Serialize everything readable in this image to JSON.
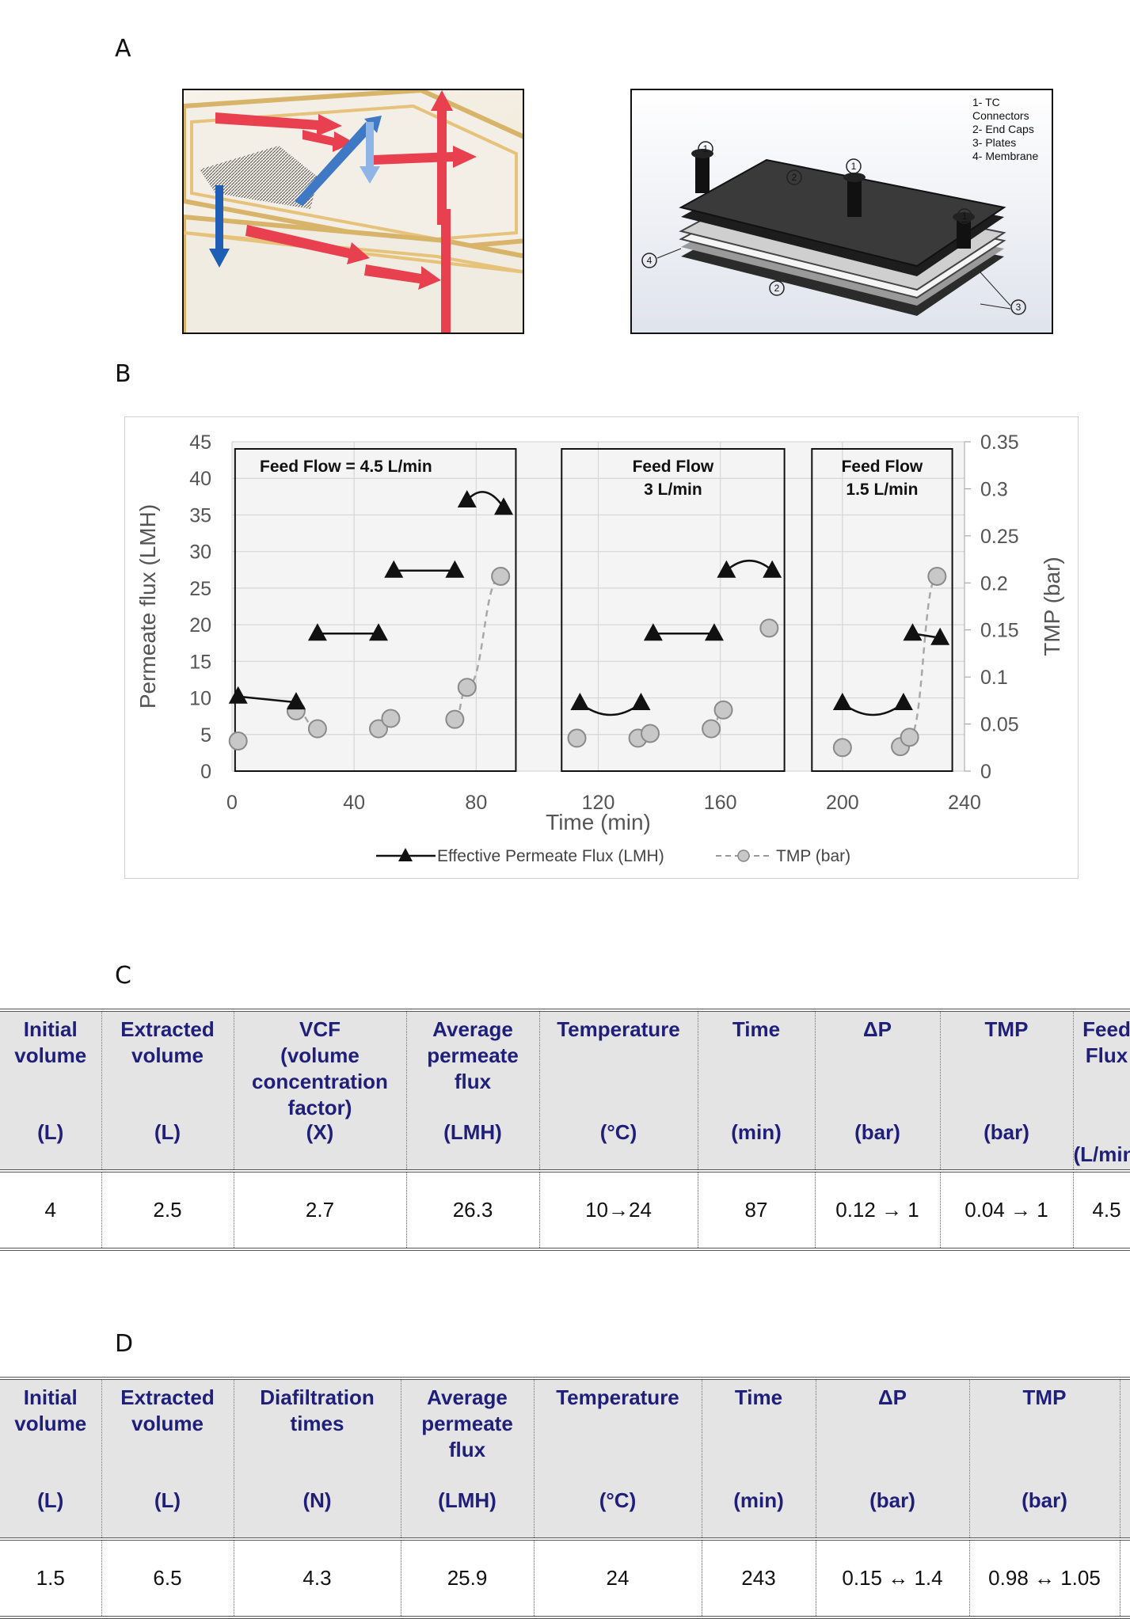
{
  "panels": {
    "a": "A",
    "b": "B",
    "c": "C",
    "d": "D"
  },
  "figure_a": {
    "legend": [
      "1- TC",
      "Connectors",
      "2- End Caps",
      "3- Plates",
      "4- Membrane"
    ],
    "callouts": [
      "1",
      "1",
      "1",
      "2",
      "2",
      "3",
      "4"
    ]
  },
  "chart_data": {
    "type": "scatter",
    "title": "",
    "xlabel": "Time (min)",
    "ylabel": "Permeate flux (LMH)",
    "y2label": "TMP (bar)",
    "xlim": [
      0,
      240
    ],
    "ylim": [
      0,
      45
    ],
    "y2lim": [
      0,
      0.35
    ],
    "x_ticks": [
      "0",
      "40",
      "80",
      "120",
      "160",
      "200",
      "240"
    ],
    "y_ticks": [
      "0",
      "5",
      "10",
      "15",
      "20",
      "25",
      "30",
      "35",
      "40",
      "45"
    ],
    "y2_ticks": [
      "0",
      "0.05",
      "0.1",
      "0.15",
      "0.2",
      "0.25",
      "0.3",
      "0.35"
    ],
    "grid": true,
    "legend_position": "bottom",
    "regions": [
      {
        "label_lines": [
          "Feed Flow = 4.5 L/min"
        ],
        "x_range": [
          1,
          93
        ]
      },
      {
        "label_lines": [
          "Feed Flow",
          "3 L/min"
        ],
        "x_range": [
          108,
          181
        ]
      },
      {
        "label_lines": [
          "Feed Flow",
          "1.5 L/min"
        ],
        "x_range": [
          190,
          236
        ]
      }
    ],
    "series": [
      {
        "name": "Effective Permeate Flux (LMH)",
        "axis": "left",
        "marker": "triangle",
        "points": [
          [
            2,
            10.2
          ],
          [
            21,
            9.4
          ],
          [
            28,
            18.8
          ],
          [
            48,
            18.8
          ],
          [
            53,
            27.4
          ],
          [
            73,
            27.4
          ],
          [
            77,
            37
          ],
          [
            89,
            36
          ],
          [
            114,
            9.3
          ],
          [
            134,
            9.3
          ],
          [
            138,
            18.8
          ],
          [
            158,
            18.8
          ],
          [
            162,
            27.4
          ],
          [
            177,
            27.4
          ],
          [
            200,
            9.3
          ],
          [
            220,
            9.3
          ],
          [
            223,
            18.8
          ],
          [
            232,
            18.2
          ]
        ]
      },
      {
        "name": "TMP (bar)",
        "axis": "right",
        "marker": "circle",
        "points": [
          [
            2,
            0.032
          ],
          [
            21,
            0.064
          ],
          [
            28,
            0.045
          ],
          [
            48,
            0.045
          ],
          [
            52,
            0.056
          ],
          [
            73,
            0.055
          ],
          [
            77,
            0.089
          ],
          [
            88,
            0.207
          ],
          [
            113,
            0.035
          ],
          [
            133,
            0.035
          ],
          [
            137,
            0.04
          ],
          [
            157,
            0.045
          ],
          [
            161,
            0.065
          ],
          [
            176,
            0.152
          ],
          [
            200,
            0.025
          ],
          [
            219,
            0.026
          ],
          [
            222,
            0.036
          ],
          [
            231,
            0.207
          ]
        ]
      }
    ],
    "legend_entries": [
      "Effective Permeate Flux (LMH)",
      "TMP (bar)"
    ]
  },
  "table_c": {
    "headers": [
      {
        "label_lines": [
          "Initial",
          "volume"
        ],
        "unit": "(L)"
      },
      {
        "label_lines": [
          "Extracted",
          "volume"
        ],
        "unit": "(L)"
      },
      {
        "label_lines": [
          "VCF",
          "(volume",
          "concentration",
          "factor)"
        ],
        "unit": "(X)"
      },
      {
        "label_lines": [
          "Average",
          "permeate",
          "flux"
        ],
        "unit": "(LMH)"
      },
      {
        "label_lines": [
          "Temperature"
        ],
        "unit": "(°C)"
      },
      {
        "label_lines": [
          "Time"
        ],
        "unit": "(min)"
      },
      {
        "label_lines": [
          "ΔP"
        ],
        "unit": "(bar)"
      },
      {
        "label_lines": [
          "TMP"
        ],
        "unit": "(bar)"
      },
      {
        "label_lines": [
          "Feed",
          "Flux"
        ],
        "unit": "(L/min)"
      }
    ],
    "rows": [
      [
        "4",
        "2.5",
        "2.7",
        "26.3",
        "10→24",
        "87",
        "0.12 → 1",
        "0.04 → 1",
        "4.5"
      ]
    ]
  },
  "table_d": {
    "headers": [
      {
        "label_lines": [
          "Initial",
          "volume"
        ],
        "unit": "(L)"
      },
      {
        "label_lines": [
          "Extracted",
          "volume"
        ],
        "unit": "(L)"
      },
      {
        "label_lines": [
          "Diafiltration",
          "times"
        ],
        "unit": "(N)"
      },
      {
        "label_lines": [
          "Average",
          "permeate",
          "flux"
        ],
        "unit": "(LMH)"
      },
      {
        "label_lines": [
          "Temperature"
        ],
        "unit": "(°C)"
      },
      {
        "label_lines": [
          "Time"
        ],
        "unit": "(min)"
      },
      {
        "label_lines": [
          "ΔP"
        ],
        "unit": "(bar)"
      },
      {
        "label_lines": [
          "TMP"
        ],
        "unit": "(bar)"
      },
      {
        "label_lines": [
          ""
        ],
        "unit": ""
      }
    ],
    "rows": [
      [
        "1.5",
        "6.5",
        "4.3",
        "25.9",
        "24",
        "243",
        "0.15 ↔ 1.4",
        "0.98 ↔ 1.05",
        ""
      ]
    ]
  }
}
